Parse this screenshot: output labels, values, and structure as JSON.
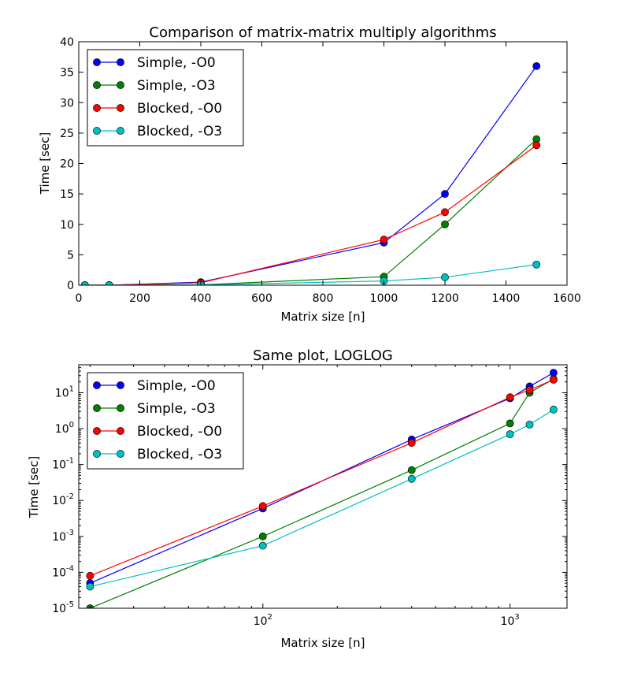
{
  "chart_data": [
    {
      "type": "line",
      "title": "Comparison of matrix-matrix multiply algorithms",
      "xlabel": "Matrix size [n]",
      "ylabel": "Time [sec]",
      "xscale": "linear",
      "yscale": "linear",
      "xlim": [
        0,
        1600
      ],
      "ylim": [
        0,
        40
      ],
      "xticks": [
        0,
        200,
        400,
        600,
        800,
        1000,
        1200,
        1400,
        1600
      ],
      "yticks": [
        0,
        5,
        10,
        15,
        20,
        25,
        30,
        35,
        40
      ],
      "x": [
        20,
        100,
        400,
        1000,
        1200,
        1500
      ],
      "legend_position": "upper left",
      "series": [
        {
          "name": "Simple, -O0",
          "color": "#0000ff",
          "values": [
            5e-05,
            0.006,
            0.5,
            7.0,
            15.0,
            36.0
          ]
        },
        {
          "name": "Simple, -O3",
          "color": "#008000",
          "values": [
            1e-05,
            0.001,
            0.07,
            1.4,
            10.0,
            24.0
          ]
        },
        {
          "name": "Blocked, -O0",
          "color": "#ff0000",
          "values": [
            8e-05,
            0.007,
            0.4,
            7.5,
            12.0,
            23.0
          ]
        },
        {
          "name": "Blocked, -O3",
          "color": "#00bfbf",
          "values": [
            4e-05,
            0.00055,
            0.04,
            0.7,
            1.3,
            3.4
          ]
        }
      ]
    },
    {
      "type": "line",
      "title": "Same plot, LOGLOG",
      "xlabel": "Matrix size [n]",
      "ylabel": "Time [sec]",
      "xscale": "log",
      "yscale": "log",
      "xlim": [
        18,
        1700
      ],
      "ylim": [
        1e-05,
        60
      ],
      "xticks": [
        {
          "value": 100,
          "base": "10",
          "exp": "2"
        },
        {
          "value": 1000,
          "base": "10",
          "exp": "3"
        }
      ],
      "yticks": [
        {
          "value": 1e-05,
          "base": "10",
          "exp": "-5"
        },
        {
          "value": 0.0001,
          "base": "10",
          "exp": "-4"
        },
        {
          "value": 0.001,
          "base": "10",
          "exp": "-3"
        },
        {
          "value": 0.01,
          "base": "10",
          "exp": "-2"
        },
        {
          "value": 0.1,
          "base": "10",
          "exp": "-1"
        },
        {
          "value": 1,
          "base": "10",
          "exp": "0"
        },
        {
          "value": 10,
          "base": "10",
          "exp": "1"
        }
      ],
      "x": [
        20,
        100,
        400,
        1000,
        1200,
        1500
      ],
      "legend_position": "upper left",
      "series": [
        {
          "name": "Simple, -O0",
          "color": "#0000ff",
          "values": [
            5e-05,
            0.006,
            0.5,
            7.0,
            15.0,
            36.0
          ]
        },
        {
          "name": "Simple, -O3",
          "color": "#008000",
          "values": [
            1e-05,
            0.001,
            0.07,
            1.4,
            10.0,
            24.0
          ]
        },
        {
          "name": "Blocked, -O0",
          "color": "#ff0000",
          "values": [
            8e-05,
            0.007,
            0.4,
            7.5,
            12.0,
            23.0
          ]
        },
        {
          "name": "Blocked, -O3",
          "color": "#00bfbf",
          "values": [
            4e-05,
            0.00055,
            0.04,
            0.7,
            1.3,
            3.4
          ]
        }
      ]
    }
  ]
}
